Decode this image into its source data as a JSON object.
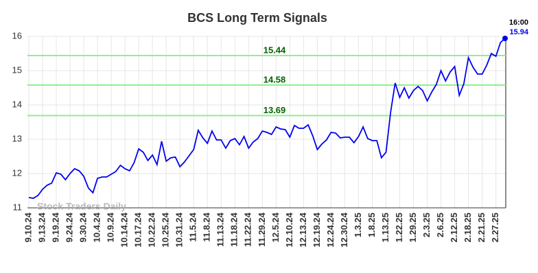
{
  "chart_data": {
    "type": "line",
    "title": "BCS Long Term Signals",
    "watermark": "Stock Traders Daily",
    "last_time": "16:00",
    "color": "#0000ee",
    "signal_color": "#90ee90",
    "signal_label_color": "#006400",
    "signal_lines": [
      15.44,
      14.58,
      13.69
    ],
    "ylim": [
      11,
      16
    ],
    "yticks": [
      11,
      12,
      13,
      14,
      15,
      16
    ],
    "grid": true,
    "categories": [
      "9.10.24",
      null,
      null,
      "9.13.24",
      null,
      null,
      "9.19.24",
      null,
      null,
      "9.24.24",
      null,
      null,
      "9.30.24",
      null,
      null,
      "10.4.24",
      null,
      null,
      "10.9.24",
      null,
      null,
      "10.14.24",
      null,
      null,
      "10.17.24",
      null,
      null,
      "10.22.24",
      null,
      null,
      "10.25.24",
      null,
      null,
      "10.31.24",
      null,
      null,
      "11.5.24",
      null,
      null,
      "11.8.24",
      null,
      null,
      "11.13.24",
      null,
      null,
      "11.18.24",
      null,
      null,
      "11.22.24",
      null,
      null,
      "11.29.24",
      null,
      null,
      "12.5.24",
      null,
      null,
      "12.10.24",
      null,
      null,
      "12.13.24",
      null,
      null,
      "12.19.24",
      null,
      null,
      "12.24.24",
      null,
      null,
      "12.30.24",
      null,
      null,
      "1.3.25",
      null,
      null,
      "1.8.25",
      null,
      null,
      "1.13.25",
      null,
      null,
      "1.22.25",
      null,
      null,
      "1.29.25",
      null,
      null,
      "2.3.25",
      null,
      null,
      "2.6.25",
      null,
      null,
      "2.12.25",
      null,
      null,
      "2.18.25",
      null,
      null,
      "2.21.25",
      null,
      null,
      "2.27.25",
      null,
      null
    ],
    "values": [
      11.3,
      11.28,
      11.36,
      11.54,
      11.66,
      11.72,
      12.02,
      11.98,
      11.82,
      12.0,
      12.14,
      12.08,
      11.92,
      11.58,
      11.44,
      11.86,
      11.9,
      11.9,
      11.98,
      12.06,
      12.24,
      12.14,
      12.08,
      12.32,
      12.72,
      12.62,
      12.38,
      12.54,
      12.26,
      12.94,
      12.36,
      12.46,
      12.48,
      12.2,
      12.34,
      12.52,
      12.7,
      13.26,
      13.04,
      12.88,
      13.24,
      12.98,
      12.98,
      12.74,
      12.96,
      13.02,
      12.84,
      13.08,
      12.74,
      12.92,
      13.02,
      13.24,
      13.2,
      13.14,
      13.36,
      13.3,
      13.28,
      13.06,
      13.4,
      13.32,
      13.32,
      13.42,
      13.1,
      12.7,
      12.86,
      12.98,
      13.2,
      13.18,
      13.04,
      13.06,
      13.06,
      12.9,
      13.08,
      13.36,
      13.02,
      12.96,
      12.96,
      12.46,
      12.62,
      13.78,
      14.64,
      14.22,
      14.5,
      14.2,
      14.42,
      14.54,
      14.42,
      14.12,
      14.38,
      14.6,
      15.0,
      14.7,
      14.96,
      15.12,
      14.28,
      14.62,
      15.38,
      15.1,
      14.9,
      14.9,
      15.16,
      15.5,
      15.42,
      15.82,
      15.94
    ]
  }
}
